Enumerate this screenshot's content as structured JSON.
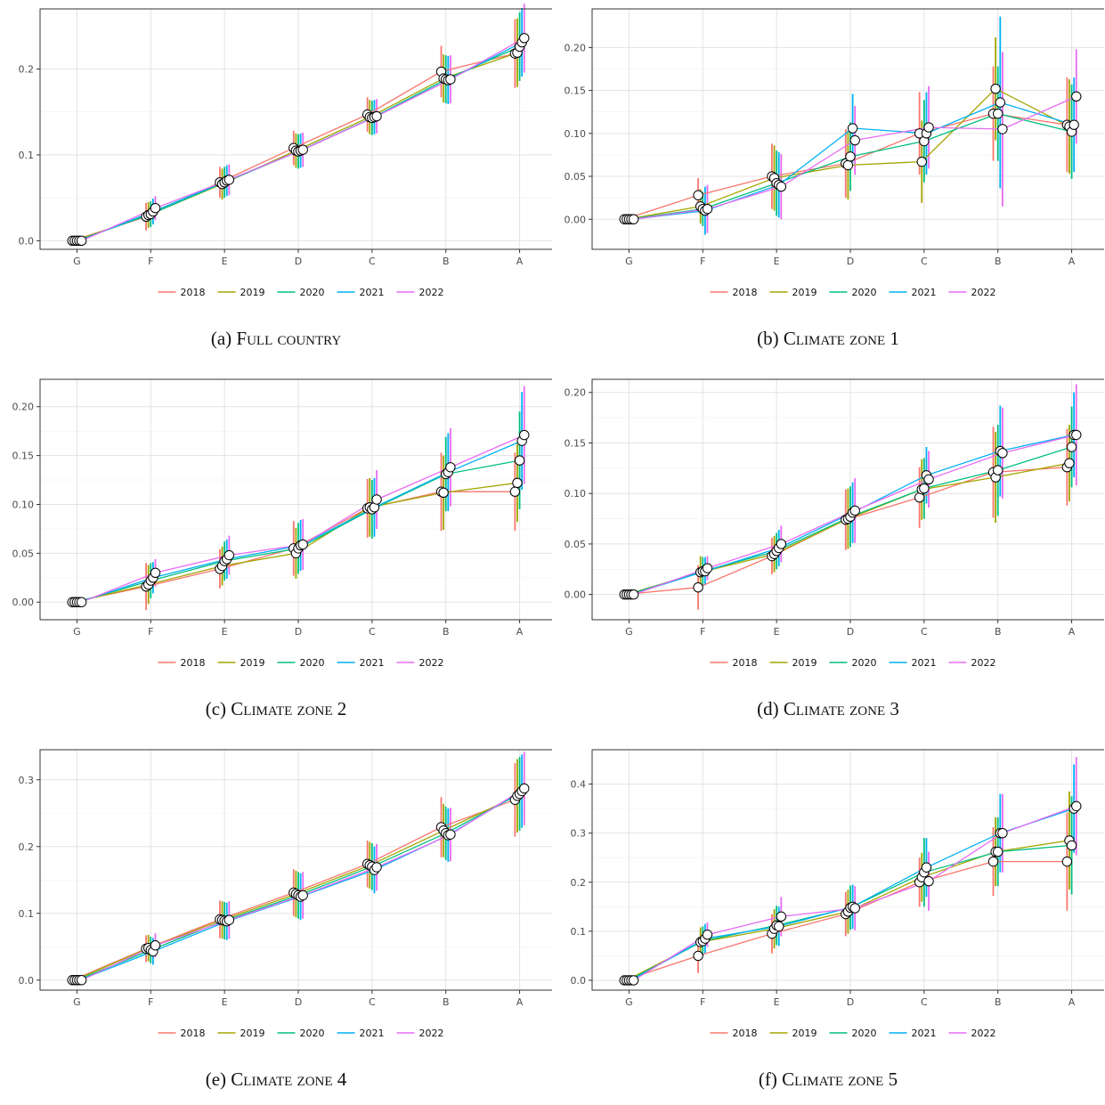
{
  "legend": {
    "items": [
      {
        "label": "2018",
        "color": "#F8766D"
      },
      {
        "label": "2019",
        "color": "#A3A500"
      },
      {
        "label": "2020",
        "color": "#00BF7D"
      },
      {
        "label": "2021",
        "color": "#00B0F6"
      },
      {
        "label": "2022",
        "color": "#E76BF3"
      }
    ]
  },
  "chart_data": [
    {
      "type": "line",
      "letter": "(a)",
      "title": "Full country",
      "categories": [
        "G",
        "F",
        "E",
        "D",
        "C",
        "B",
        "A"
      ],
      "ylim": [
        -0.01,
        0.27
      ],
      "yticks": [
        0.0,
        0.1,
        0.2
      ],
      "ytick_labels": [
        "0.0",
        "0.1",
        "0.2"
      ],
      "series": [
        {
          "name": "2018",
          "values": [
            0,
            0.028,
            0.068,
            0.108,
            0.147,
            0.197,
            0.218
          ],
          "err": [
            0,
            0.016,
            0.018,
            0.02,
            0.02,
            0.03,
            0.04
          ]
        },
        {
          "name": "2019",
          "values": [
            0,
            0.03,
            0.066,
            0.105,
            0.144,
            0.189,
            0.219
          ],
          "err": [
            0,
            0.015,
            0.018,
            0.02,
            0.02,
            0.028,
            0.04
          ]
        },
        {
          "name": "2020",
          "values": [
            0,
            0.031,
            0.068,
            0.104,
            0.143,
            0.188,
            0.226
          ],
          "err": [
            0,
            0.015,
            0.018,
            0.02,
            0.02,
            0.028,
            0.04
          ]
        },
        {
          "name": "2021",
          "values": [
            0,
            0.034,
            0.07,
            0.105,
            0.144,
            0.187,
            0.231
          ],
          "err": [
            0,
            0.015,
            0.018,
            0.02,
            0.02,
            0.028,
            0.04
          ]
        },
        {
          "name": "2022",
          "values": [
            0,
            0.038,
            0.071,
            0.106,
            0.145,
            0.188,
            0.236
          ],
          "err": [
            0,
            0.014,
            0.018,
            0.02,
            0.02,
            0.028,
            0.04
          ]
        }
      ]
    },
    {
      "type": "line",
      "letter": "(b)",
      "title": "Climate zone 1",
      "categories": [
        "G",
        "F",
        "E",
        "D",
        "C",
        "B",
        "A"
      ],
      "ylim": [
        -0.035,
        0.245
      ],
      "yticks": [
        0.0,
        0.05,
        0.1,
        0.15,
        0.2
      ],
      "ytick_labels": [
        "0.00",
        "0.05",
        "0.10",
        "0.15",
        "0.20"
      ],
      "series": [
        {
          "name": "2018",
          "values": [
            0,
            0.028,
            0.05,
            0.065,
            0.1,
            0.123,
            0.11
          ],
          "err": [
            0,
            0.02,
            0.038,
            0.04,
            0.048,
            0.055,
            0.055
          ]
        },
        {
          "name": "2019",
          "values": [
            0,
            0.015,
            0.048,
            0.063,
            0.067,
            0.152,
            0.108
          ],
          "err": [
            0,
            0.02,
            0.038,
            0.04,
            0.048,
            0.06,
            0.055
          ]
        },
        {
          "name": "2020",
          "values": [
            0,
            0.012,
            0.042,
            0.073,
            0.091,
            0.123,
            0.102
          ],
          "err": [
            0,
            0.02,
            0.038,
            0.04,
            0.048,
            0.055,
            0.055
          ]
        },
        {
          "name": "2021",
          "values": [
            0,
            0.01,
            0.04,
            0.106,
            0.1,
            0.136,
            0.11
          ],
          "err": [
            0,
            0.028,
            0.038,
            0.04,
            0.048,
            0.1,
            0.055
          ]
        },
        {
          "name": "2022",
          "values": [
            0,
            0.012,
            0.038,
            0.092,
            0.107,
            0.105,
            0.143
          ],
          "err": [
            0,
            0.028,
            0.038,
            0.04,
            0.048,
            0.09,
            0.055
          ]
        }
      ]
    },
    {
      "type": "line",
      "letter": "(c)",
      "title": "Climate zone 2",
      "categories": [
        "G",
        "F",
        "E",
        "D",
        "C",
        "B",
        "A"
      ],
      "ylim": [
        -0.018,
        0.228
      ],
      "yticks": [
        0.0,
        0.05,
        0.1,
        0.15,
        0.2
      ],
      "ytick_labels": [
        "0.00",
        "0.05",
        "0.10",
        "0.15",
        "0.20"
      ],
      "series": [
        {
          "name": "2018",
          "values": [
            0,
            0.016,
            0.034,
            0.055,
            0.096,
            0.113,
            0.113
          ],
          "err": [
            0,
            0.024,
            0.02,
            0.028,
            0.03,
            0.04,
            0.04
          ]
        },
        {
          "name": "2019",
          "values": [
            0,
            0.018,
            0.037,
            0.05,
            0.097,
            0.112,
            0.122
          ],
          "err": [
            0,
            0.02,
            0.02,
            0.026,
            0.03,
            0.038,
            0.04
          ]
        },
        {
          "name": "2020",
          "values": [
            0,
            0.022,
            0.042,
            0.055,
            0.095,
            0.131,
            0.145
          ],
          "err": [
            0,
            0.018,
            0.02,
            0.026,
            0.03,
            0.038,
            0.05
          ]
        },
        {
          "name": "2021",
          "values": [
            0,
            0.025,
            0.044,
            0.058,
            0.097,
            0.133,
            0.165
          ],
          "err": [
            0,
            0.016,
            0.02,
            0.026,
            0.03,
            0.04,
            0.05
          ]
        },
        {
          "name": "2022",
          "values": [
            0,
            0.03,
            0.048,
            0.059,
            0.105,
            0.138,
            0.171
          ],
          "err": [
            0,
            0.014,
            0.02,
            0.026,
            0.03,
            0.04,
            0.05
          ]
        }
      ]
    },
    {
      "type": "line",
      "letter": "(d)",
      "title": "Climate zone 3",
      "categories": [
        "G",
        "F",
        "E",
        "D",
        "C",
        "B",
        "A"
      ],
      "ylim": [
        -0.025,
        0.213
      ],
      "yticks": [
        0.0,
        0.05,
        0.1,
        0.15,
        0.2
      ],
      "ytick_labels": [
        "0.00",
        "0.05",
        "0.10",
        "0.15",
        "0.20"
      ],
      "series": [
        {
          "name": "2018",
          "values": [
            0,
            0.007,
            0.038,
            0.074,
            0.096,
            0.121,
            0.126
          ],
          "err": [
            0,
            0.022,
            0.018,
            0.03,
            0.03,
            0.045,
            0.038
          ]
        },
        {
          "name": "2019",
          "values": [
            0,
            0.022,
            0.04,
            0.075,
            0.104,
            0.116,
            0.13
          ],
          "err": [
            0,
            0.016,
            0.018,
            0.03,
            0.03,
            0.045,
            0.038
          ]
        },
        {
          "name": "2020",
          "values": [
            0,
            0.023,
            0.043,
            0.077,
            0.105,
            0.123,
            0.146
          ],
          "err": [
            0,
            0.014,
            0.018,
            0.03,
            0.03,
            0.045,
            0.04
          ]
        },
        {
          "name": "2021",
          "values": [
            0,
            0.023,
            0.046,
            0.081,
            0.118,
            0.142,
            0.158
          ],
          "err": [
            0,
            0.014,
            0.018,
            0.03,
            0.028,
            0.045,
            0.042
          ]
        },
        {
          "name": "2022",
          "values": [
            0,
            0.026,
            0.05,
            0.083,
            0.114,
            0.14,
            0.158
          ],
          "err": [
            0,
            0.012,
            0.018,
            0.032,
            0.028,
            0.045,
            0.05
          ]
        }
      ]
    },
    {
      "type": "line",
      "letter": "(e)",
      "title": "Climate zone 4",
      "categories": [
        "G",
        "F",
        "E",
        "D",
        "C",
        "B",
        "A"
      ],
      "ylim": [
        -0.015,
        0.345
      ],
      "yticks": [
        0.0,
        0.1,
        0.2,
        0.3
      ],
      "ytick_labels": [
        "0.0",
        "0.1",
        "0.2",
        "0.3"
      ],
      "series": [
        {
          "name": "2018",
          "values": [
            0,
            0.047,
            0.091,
            0.131,
            0.174,
            0.229,
            0.27
          ],
          "err": [
            0,
            0.02,
            0.028,
            0.035,
            0.035,
            0.045,
            0.055
          ]
        },
        {
          "name": "2019",
          "values": [
            0,
            0.048,
            0.09,
            0.129,
            0.172,
            0.224,
            0.276
          ],
          "err": [
            0,
            0.02,
            0.028,
            0.035,
            0.035,
            0.04,
            0.055
          ]
        },
        {
          "name": "2020",
          "values": [
            0,
            0.045,
            0.089,
            0.127,
            0.17,
            0.22,
            0.279
          ],
          "err": [
            0,
            0.02,
            0.028,
            0.035,
            0.035,
            0.04,
            0.055
          ]
        },
        {
          "name": "2021",
          "values": [
            0,
            0.043,
            0.088,
            0.125,
            0.165,
            0.217,
            0.283
          ],
          "err": [
            0,
            0.02,
            0.028,
            0.035,
            0.035,
            0.04,
            0.055
          ]
        },
        {
          "name": "2022",
          "values": [
            0,
            0.052,
            0.09,
            0.127,
            0.169,
            0.218,
            0.287
          ],
          "err": [
            0,
            0.018,
            0.028,
            0.035,
            0.035,
            0.04,
            0.055
          ]
        }
      ]
    },
    {
      "type": "line",
      "letter": "(f)",
      "title": "Climate zone 5",
      "categories": [
        "G",
        "F",
        "E",
        "D",
        "C",
        "B",
        "A"
      ],
      "ylim": [
        -0.02,
        0.47
      ],
      "yticks": [
        0.0,
        0.1,
        0.2,
        0.3,
        0.4
      ],
      "ytick_labels": [
        "0.0",
        "0.1",
        "0.2",
        "0.3",
        "0.4"
      ],
      "series": [
        {
          "name": "2018",
          "values": [
            0,
            0.05,
            0.095,
            0.135,
            0.2,
            0.242,
            0.242
          ],
          "err": [
            0,
            0.035,
            0.04,
            0.045,
            0.05,
            0.07,
            0.1
          ]
        },
        {
          "name": "2019",
          "values": [
            0,
            0.078,
            0.105,
            0.14,
            0.21,
            0.262,
            0.285
          ],
          "err": [
            0,
            0.03,
            0.04,
            0.045,
            0.05,
            0.07,
            0.1
          ]
        },
        {
          "name": "2020",
          "values": [
            0,
            0.08,
            0.112,
            0.148,
            0.22,
            0.262,
            0.275
          ],
          "err": [
            0,
            0.03,
            0.04,
            0.045,
            0.07,
            0.07,
            0.1
          ]
        },
        {
          "name": "2021",
          "values": [
            0,
            0.085,
            0.11,
            0.15,
            0.23,
            0.3,
            0.35
          ],
          "err": [
            0,
            0.03,
            0.04,
            0.045,
            0.06,
            0.08,
            0.09
          ]
        },
        {
          "name": "2022",
          "values": [
            0,
            0.093,
            0.13,
            0.147,
            0.202,
            0.3,
            0.355
          ],
          "err": [
            0,
            0.025,
            0.04,
            0.045,
            0.06,
            0.08,
            0.1
          ]
        }
      ]
    }
  ]
}
